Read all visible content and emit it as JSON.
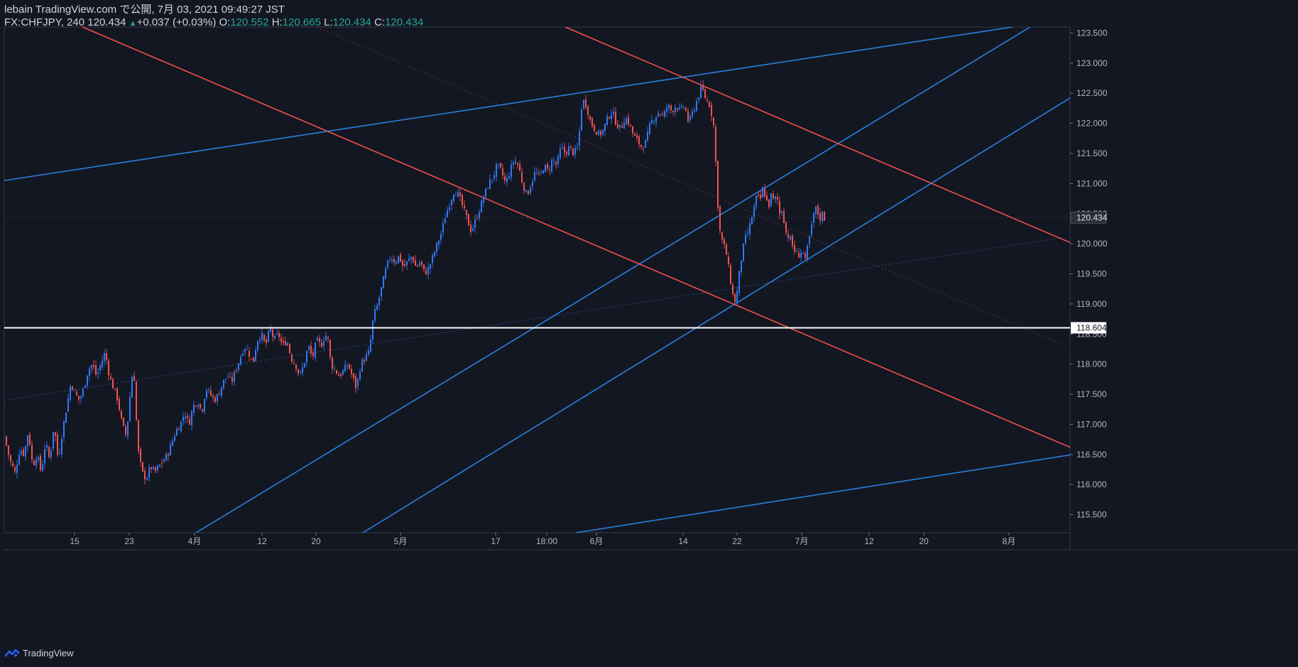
{
  "header": {
    "line1": "lebain TradingView.com で公開, 7月 03, 2021 09:49:27 JST",
    "symbol_line": "FX:CHFJPY, 240 120.434",
    "change": "+0.037 (+0.03%)",
    "up_icon": "triangle-up-icon",
    "o_label": "O:",
    "o_value": "120.552",
    "h_label": "H:",
    "h_value": "120.665",
    "l_label": "L:",
    "l_value": "120.434",
    "c_label": "C:",
    "c_value": "120.434"
  },
  "footer": {
    "brand": "TradingView",
    "logo_icon": "tradingview-logo-icon"
  },
  "colors": {
    "background": "#131722",
    "up": "#3179f5",
    "down": "#ef5350",
    "trend_blue": "#2a7fe0",
    "trend_red": "#f0504c",
    "horizontal": "#ffffff",
    "axis_text": "#b2b5be",
    "header_value": "#26a69a"
  },
  "chart_data": {
    "type": "candlestick",
    "symbol": "FX:CHFJPY",
    "interval": "240",
    "ylim": [
      115.2,
      123.6
    ],
    "y_ticks": [
      "115.500",
      "116.000",
      "116.500",
      "117.000",
      "117.500",
      "118.000",
      "118.500",
      "119.000",
      "119.500",
      "120.000",
      "120.500",
      "121.000",
      "121.500",
      "122.000",
      "122.500",
      "123.000",
      "123.500"
    ],
    "x_ticks": [
      "15",
      "23",
      "4月",
      "12",
      "20",
      "5月",
      "17",
      "18:00",
      "6月",
      "14",
      "22",
      "7月",
      "12",
      "20",
      "8月"
    ],
    "price_labels": [
      {
        "value": "120.434",
        "style": "current"
      },
      {
        "value": "118.604",
        "style": "horizontal-line"
      }
    ],
    "horizontal_line": 118.604,
    "close_path": [
      [
        0,
        116.8
      ],
      [
        8,
        116.4
      ],
      [
        15,
        116.2
      ],
      [
        22,
        116.6
      ],
      [
        28,
        116.5
      ],
      [
        34,
        116.9
      ],
      [
        40,
        116.3
      ],
      [
        46,
        116.5
      ],
      [
        52,
        116.2
      ],
      [
        58,
        116.7
      ],
      [
        64,
        116.4
      ],
      [
        70,
        117.0
      ],
      [
        76,
        116.4
      ],
      [
        82,
        116.9
      ],
      [
        88,
        117.3
      ],
      [
        94,
        117.7
      ],
      [
        100,
        117.5
      ],
      [
        106,
        117.4
      ],
      [
        112,
        117.6
      ],
      [
        118,
        117.9
      ],
      [
        124,
        118.0
      ],
      [
        130,
        117.8
      ],
      [
        136,
        118.0
      ],
      [
        142,
        118.2
      ],
      [
        148,
        117.8
      ],
      [
        154,
        117.6
      ],
      [
        160,
        117.4
      ],
      [
        166,
        117.0
      ],
      [
        172,
        116.8
      ],
      [
        178,
        117.6
      ],
      [
        182,
        118.0
      ],
      [
        188,
        116.6
      ],
      [
        194,
        116.2
      ],
      [
        200,
        116.1
      ],
      [
        206,
        116.3
      ],
      [
        212,
        116.2
      ],
      [
        218,
        116.3
      ],
      [
        224,
        116.4
      ],
      [
        230,
        116.5
      ],
      [
        236,
        116.7
      ],
      [
        242,
        116.9
      ],
      [
        248,
        117.0
      ],
      [
        254,
        117.2
      ],
      [
        260,
        117.0
      ],
      [
        266,
        117.3
      ],
      [
        272,
        117.4
      ],
      [
        278,
        117.2
      ],
      [
        284,
        117.6
      ],
      [
        290,
        117.5
      ],
      [
        296,
        117.4
      ],
      [
        302,
        117.5
      ],
      [
        308,
        117.7
      ],
      [
        314,
        117.8
      ],
      [
        320,
        117.7
      ],
      [
        326,
        117.9
      ],
      [
        332,
        118.1
      ],
      [
        338,
        118.3
      ],
      [
        344,
        118.2
      ],
      [
        350,
        118.0
      ],
      [
        356,
        118.4
      ],
      [
        362,
        118.5
      ],
      [
        368,
        118.3
      ],
      [
        374,
        118.6
      ],
      [
        380,
        118.4
      ],
      [
        386,
        118.5
      ],
      [
        392,
        118.3
      ],
      [
        398,
        118.4
      ],
      [
        404,
        118.1
      ],
      [
        410,
        118.0
      ],
      [
        416,
        117.8
      ],
      [
        422,
        118.0
      ],
      [
        428,
        118.3
      ],
      [
        434,
        118.1
      ],
      [
        440,
        118.4
      ],
      [
        446,
        118.3
      ],
      [
        452,
        118.5
      ],
      [
        456,
        118.4
      ],
      [
        460,
        118.0
      ],
      [
        466,
        117.9
      ],
      [
        472,
        117.8
      ],
      [
        478,
        117.9
      ],
      [
        484,
        118.0
      ],
      [
        490,
        117.8
      ],
      [
        496,
        117.6
      ],
      [
        502,
        118.0
      ],
      [
        508,
        118.1
      ],
      [
        514,
        118.2
      ],
      [
        520,
        118.8
      ],
      [
        526,
        119.0
      ],
      [
        532,
        119.3
      ],
      [
        538,
        119.6
      ],
      [
        544,
        119.8
      ],
      [
        550,
        119.7
      ],
      [
        556,
        119.8
      ],
      [
        562,
        119.6
      ],
      [
        568,
        119.7
      ],
      [
        574,
        119.8
      ],
      [
        580,
        119.6
      ],
      [
        586,
        119.7
      ],
      [
        592,
        119.5
      ],
      [
        598,
        119.6
      ],
      [
        604,
        119.8
      ],
      [
        610,
        120.0
      ],
      [
        616,
        120.2
      ],
      [
        622,
        120.5
      ],
      [
        628,
        120.7
      ],
      [
        634,
        120.9
      ],
      [
        640,
        120.8
      ],
      [
        646,
        120.6
      ],
      [
        652,
        120.4
      ],
      [
        658,
        120.2
      ],
      [
        664,
        120.4
      ],
      [
        670,
        120.6
      ],
      [
        676,
        120.8
      ],
      [
        682,
        121.0
      ],
      [
        688,
        121.1
      ],
      [
        694,
        121.3
      ],
      [
        700,
        121.2
      ],
      [
        706,
        121.0
      ],
      [
        712,
        121.2
      ],
      [
        718,
        121.4
      ],
      [
        724,
        121.3
      ],
      [
        730,
        121.0
      ],
      [
        736,
        120.8
      ],
      [
        742,
        121.0
      ],
      [
        748,
        121.2
      ],
      [
        754,
        121.1
      ],
      [
        760,
        121.3
      ],
      [
        766,
        121.2
      ],
      [
        772,
        121.4
      ],
      [
        778,
        121.3
      ],
      [
        784,
        121.6
      ],
      [
        790,
        121.5
      ],
      [
        796,
        121.6
      ],
      [
        802,
        121.5
      ],
      [
        808,
        121.6
      ],
      [
        814,
        122.4
      ],
      [
        820,
        122.3
      ],
      [
        826,
        122.0
      ],
      [
        832,
        121.9
      ],
      [
        838,
        121.8
      ],
      [
        844,
        121.9
      ],
      [
        850,
        122.1
      ],
      [
        856,
        122.2
      ],
      [
        862,
        122.0
      ],
      [
        868,
        121.9
      ],
      [
        874,
        122.1
      ],
      [
        880,
        122.0
      ],
      [
        886,
        121.8
      ],
      [
        892,
        121.7
      ],
      [
        898,
        121.6
      ],
      [
        904,
        121.7
      ],
      [
        910,
        122.0
      ],
      [
        916,
        122.1
      ],
      [
        922,
        122.2
      ],
      [
        928,
        122.1
      ],
      [
        934,
        122.3
      ],
      [
        940,
        122.2
      ],
      [
        946,
        122.3
      ],
      [
        952,
        122.2
      ],
      [
        958,
        122.3
      ],
      [
        964,
        122.0
      ],
      [
        970,
        122.2
      ],
      [
        976,
        122.4
      ],
      [
        982,
        122.6
      ],
      [
        988,
        122.4
      ],
      [
        994,
        122.3
      ],
      [
        1000,
        121.9
      ],
      [
        1004,
        120.8
      ],
      [
        1008,
        120.2
      ],
      [
        1012,
        120.0
      ],
      [
        1016,
        119.9
      ],
      [
        1020,
        119.6
      ],
      [
        1024,
        119.3
      ],
      [
        1028,
        119.0
      ],
      [
        1032,
        119.2
      ],
      [
        1036,
        119.6
      ],
      [
        1040,
        119.9
      ],
      [
        1044,
        120.1
      ],
      [
        1048,
        120.2
      ],
      [
        1052,
        120.4
      ],
      [
        1056,
        120.6
      ],
      [
        1060,
        120.8
      ],
      [
        1064,
        120.7
      ],
      [
        1068,
        120.9
      ],
      [
        1072,
        120.8
      ],
      [
        1076,
        120.6
      ],
      [
        1080,
        120.8
      ],
      [
        1084,
        120.7
      ],
      [
        1088,
        120.8
      ],
      [
        1092,
        120.5
      ],
      [
        1096,
        120.6
      ],
      [
        1100,
        120.2
      ],
      [
        1106,
        120.1
      ],
      [
        1112,
        119.9
      ],
      [
        1118,
        119.8
      ],
      [
        1124,
        119.9
      ],
      [
        1128,
        119.7
      ],
      [
        1132,
        120.0
      ],
      [
        1136,
        120.2
      ],
      [
        1140,
        120.5
      ],
      [
        1144,
        120.6
      ],
      [
        1148,
        120.4
      ],
      [
        1152,
        120.5
      ],
      [
        1156,
        120.4
      ]
    ],
    "trendlines": [
      {
        "color": "blue",
        "from": [
          0,
          121.05
        ],
        "to": [
          1420,
          123.6
        ]
      },
      {
        "color": "blue",
        "from": [
          270,
          115.2
        ],
        "to": [
          1445,
          123.6
        ]
      },
      {
        "color": "blue",
        "from": [
          505,
          115.2
        ],
        "to": [
          1505,
          122.45
        ]
      },
      {
        "color": "blue",
        "from": [
          805,
          115.2
        ],
        "to": [
          1505,
          116.5
        ]
      },
      {
        "color": "red",
        "from": [
          110,
          123.6
        ],
        "to": [
          1505,
          116.6
        ]
      },
      {
        "color": "red",
        "from": [
          790,
          123.6
        ],
        "to": [
          1505,
          120.0
        ]
      }
    ]
  }
}
